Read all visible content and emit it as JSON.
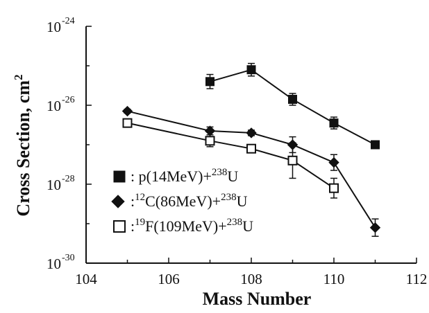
{
  "chart_data": {
    "type": "line",
    "title": "",
    "xlabel": "Mass Number",
    "ylabel": "Cross Section, cm",
    "ylabel_superscript": "2",
    "xlim": [
      104,
      112
    ],
    "ylim_exponent": [
      -30,
      -24
    ],
    "y_scale": "log",
    "x_ticks": [
      "104",
      "106",
      "108",
      "110",
      "112"
    ],
    "y_ticks": [
      {
        "base": "10",
        "exp": "-24"
      },
      {
        "base": "10",
        "exp": "-26"
      },
      {
        "base": "10",
        "exp": "-28"
      },
      {
        "base": "10",
        "exp": "-30"
      }
    ],
    "grid": false,
    "legend_position": "lower-left",
    "series": [
      {
        "name": "p(14MeV)+238U",
        "legend_label": {
          "prefix": ": p(14MeV)+",
          "sup": "238",
          "suffix": "U"
        },
        "marker": "filled-square",
        "x": [
          107,
          108,
          109,
          110,
          111
        ],
        "y_exp": [
          -25.4,
          -25.1,
          -25.85,
          -26.45,
          -27.0
        ],
        "err_exp": [
          0.18,
          0.16,
          0.15,
          0.15,
          0.1
        ]
      },
      {
        "name": "12C(86MeV)+238U",
        "legend_label": {
          "prefix": ":",
          "sup": "12",
          "suffix": "C(86MeV)+",
          "sup2": "238",
          "suffix2": "U"
        },
        "marker": "filled-diamond",
        "x": [
          105,
          107,
          108,
          109,
          110,
          111
        ],
        "y_exp": [
          -26.15,
          -26.65,
          -26.7,
          -27.0,
          -27.45,
          -29.1
        ],
        "err_exp": [
          0.05,
          0.1,
          0.07,
          0.2,
          0.2,
          0.22
        ]
      },
      {
        "name": "19F(109MeV)+238U",
        "legend_label": {
          "prefix": ":",
          "sup": "19",
          "suffix": "F(109MeV)+",
          "sup2": "238",
          "suffix2": "U"
        },
        "marker": "open-square",
        "x": [
          105,
          107,
          108,
          109,
          110
        ],
        "y_exp": [
          -26.45,
          -26.9,
          -27.1,
          -27.4,
          -28.1
        ],
        "err_exp": [
          0.05,
          0.15,
          0.05,
          0.45,
          0.25
        ]
      }
    ]
  }
}
